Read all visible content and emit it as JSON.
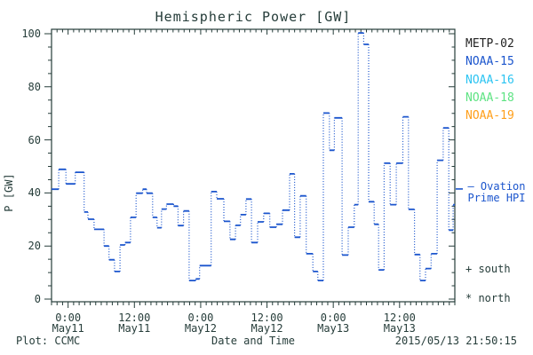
{
  "title": "Hemispheric Power [GW]",
  "colors": {
    "text": "#263d3a",
    "frame": "#263d3a",
    "hpi_line": "#1b55cd",
    "metp02": "#222222",
    "noaa15": "#1b55cd",
    "noaa16": "#2cc4f2",
    "noaa18": "#5ee383",
    "noaa19": "#ff9f1a"
  },
  "legend": {
    "items": [
      {
        "label": "METP-02",
        "color_key": "metp02"
      },
      {
        "label": "NOAA-15",
        "color_key": "noaa15"
      },
      {
        "label": "NOAA-16",
        "color_key": "noaa16"
      },
      {
        "label": "NOAA-18",
        "color_key": "noaa18"
      },
      {
        "label": "NOAA-19",
        "color_key": "noaa19"
      }
    ]
  },
  "annotations": {
    "ovation_line1": "— Ovation",
    "ovation_line2": "Prime HPI",
    "south": "+ south",
    "north": "* north"
  },
  "footer": {
    "left": "Plot: CCMC",
    "center": "Date and Time",
    "right": "2015/05/13 21:50:15"
  },
  "chart_data": {
    "type": "line",
    "subtype": "step-histogram, dotted connectors",
    "title": "Hemispheric Power [GW]",
    "xlabel": "Date and Time",
    "ylabel": "P [GW]",
    "ylim": [
      0,
      100
    ],
    "y_major_ticks": [
      0,
      20,
      40,
      60,
      80,
      100
    ],
    "y_minor_step": 5,
    "x_range_hours": 73,
    "x_start": "2015-05-10 21:00",
    "x_end": "2015-05-13 22:00",
    "x_minor_step_hours": 1,
    "grid": "off",
    "legend_position": "right-outside",
    "x_ticks": [
      {
        "t": 3,
        "time": "0:00",
        "date": "May11"
      },
      {
        "t": 15,
        "time": "12:00",
        "date": "May11"
      },
      {
        "t": 27,
        "time": "0:00",
        "date": "May12"
      },
      {
        "t": 39,
        "time": "12:00",
        "date": "May12"
      },
      {
        "t": 51,
        "time": "0:00",
        "date": "May13"
      },
      {
        "t": 63,
        "time": "12:00",
        "date": "May13"
      }
    ],
    "hpi_marker": {
      "value": 41.5,
      "label": "Ovation Prime HPI"
    },
    "series": [
      {
        "name": "Ovation Prime HPI",
        "color_key": "hpi_line",
        "units": "GW",
        "steps_t_hours_value_gw": [
          [
            0,
            41.4
          ],
          [
            1.3,
            48.9
          ],
          [
            2.6,
            43.4
          ],
          [
            4.3,
            47.8
          ],
          [
            5.9,
            32.8
          ],
          [
            6.6,
            30.1
          ],
          [
            7.7,
            26.3
          ],
          [
            9.5,
            20.0
          ],
          [
            10.4,
            14.8
          ],
          [
            11.4,
            10.4
          ],
          [
            12.4,
            20.4
          ],
          [
            13.3,
            21.3
          ],
          [
            14.3,
            30.8
          ],
          [
            15.3,
            39.9
          ],
          [
            16.5,
            41.4
          ],
          [
            17.2,
            39.9
          ],
          [
            18.3,
            30.8
          ],
          [
            19.1,
            26.9
          ],
          [
            19.9,
            33.9
          ],
          [
            20.8,
            35.8
          ],
          [
            22.1,
            35.0
          ],
          [
            22.9,
            27.7
          ],
          [
            23.9,
            33.2
          ],
          [
            24.9,
            7.0
          ],
          [
            26.1,
            7.6
          ],
          [
            26.8,
            12.6
          ],
          [
            28.9,
            40.5
          ],
          [
            29.9,
            37.8
          ],
          [
            31.2,
            29.3
          ],
          [
            32.3,
            22.5
          ],
          [
            33.3,
            27.8
          ],
          [
            34.2,
            31.8
          ],
          [
            35.2,
            37.7
          ],
          [
            36.2,
            21.3
          ],
          [
            37.3,
            29.1
          ],
          [
            38.4,
            32.3
          ],
          [
            39.5,
            27.1
          ],
          [
            40.7,
            28.2
          ],
          [
            41.8,
            33.5
          ],
          [
            43.1,
            47.2
          ],
          [
            44.0,
            23.3
          ],
          [
            45.0,
            38.9
          ],
          [
            46.1,
            17.1
          ],
          [
            47.3,
            10.4
          ],
          [
            48.2,
            7.0
          ],
          [
            49.2,
            70.1
          ],
          [
            50.3,
            56.1
          ],
          [
            51.2,
            68.3
          ],
          [
            52.6,
            16.6
          ],
          [
            53.7,
            27.1
          ],
          [
            54.8,
            35.6
          ],
          [
            55.5,
            100.3
          ],
          [
            56.5,
            96.0
          ],
          [
            57.4,
            36.7
          ],
          [
            58.4,
            28.2
          ],
          [
            59.2,
            11.0
          ],
          [
            60.2,
            51.2
          ],
          [
            61.3,
            35.6
          ],
          [
            62.4,
            51.2
          ],
          [
            63.6,
            68.7
          ],
          [
            64.6,
            33.8
          ],
          [
            65.7,
            16.8
          ],
          [
            66.7,
            7.0
          ],
          [
            67.7,
            11.5
          ],
          [
            68.7,
            17.1
          ],
          [
            69.8,
            52.3
          ],
          [
            70.9,
            64.5
          ],
          [
            71.9,
            26.0
          ],
          [
            72.7,
            35.6
          ]
        ]
      }
    ]
  }
}
